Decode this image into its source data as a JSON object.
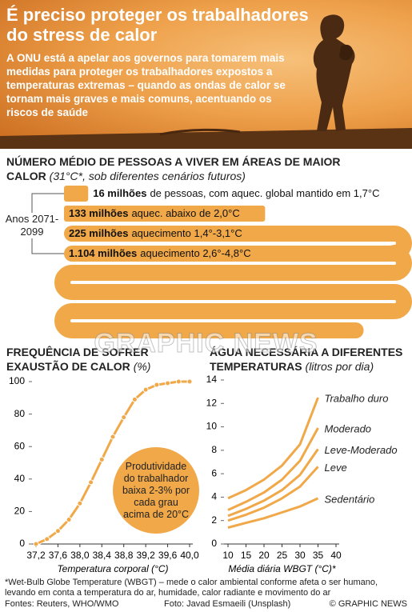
{
  "header": {
    "title": "É preciso proteger os trabalhadores do stress de calor",
    "subtitle": "A ONU está a apelar aos governos para tomarem mais medidas para proteger os trabalhadores expostos a temperaturas extremas – quando as ondas de calor se tornam mais graves e mais comuns, acentuando os riscos de saúde"
  },
  "chart_data": [
    {
      "type": "bar",
      "title": "NÚMERO MÉDIO DE PESSOAS A VIVER EM ÁREAS DE MAIOR CALOR",
      "subtitle": "(31°C*, sob diferentes cenários futuros)",
      "period_label": "Anos 2071-2099",
      "categories": [
        "de pessoas, com aquec. global mantido em 1,7°C",
        "aquec. abaixo de 2,0°C",
        "aquecimento 1,4°-3,1°C",
        "aquecimento 2,6°-4,8°C"
      ],
      "values": [
        16,
        133,
        225,
        1104
      ],
      "value_labels": [
        "16 milhões",
        "133 milhões",
        "225 milhões",
        "1.104 milhões"
      ],
      "color": "#f0a848"
    },
    {
      "type": "line",
      "title": "FREQUÊNCIA DE SOFRER EXAUSTÃO DE CALOR",
      "units": "(%)",
      "x_label": "Temperatura corporal (°C)",
      "x": [
        37.2,
        37.4,
        37.6,
        37.8,
        38.0,
        38.2,
        38.4,
        38.6,
        38.8,
        39.0,
        39.2,
        39.4,
        39.6,
        39.8,
        40.0
      ],
      "values": [
        0,
        3,
        8,
        15,
        25,
        38,
        52,
        66,
        78,
        89,
        95,
        98,
        99,
        100,
        100
      ],
      "color": "#f0a848",
      "markers": true,
      "xlim": [
        37.2,
        40.0
      ],
      "xticks": [
        {
          "value": 37.2,
          "label": "37,2"
        },
        {
          "value": 37.6,
          "label": "37,6"
        },
        {
          "value": 38.0,
          "label": "38,0"
        },
        {
          "value": 38.4,
          "label": "38,4"
        },
        {
          "value": 38.8,
          "label": "38,8"
        },
        {
          "value": 39.2,
          "label": "39,2"
        },
        {
          "value": 39.6,
          "label": "39,6"
        },
        {
          "value": 40.0,
          "label": "40,0"
        }
      ],
      "ylim": [
        0,
        100
      ],
      "yticks": [
        0,
        20,
        40,
        60,
        80,
        100
      ],
      "annotation": "Produtividade do trabalhador baixa 2-3% por cada grau acima de 20°C"
    },
    {
      "type": "line",
      "title": "ÁGUA NECESSÁRIA A DIFERENTES TEMPERATURAS",
      "units": "(litros por dia)",
      "x_label": "Média diária WBGT (°C)*",
      "x": [
        10,
        15,
        20,
        25,
        30,
        35
      ],
      "series": [
        {
          "name": "Trabalho duro",
          "color": "#f0a848",
          "values": [
            3.9,
            4.6,
            5.5,
            6.7,
            8.5,
            12.5
          ]
        },
        {
          "name": "Moderado",
          "color": "#f0a848",
          "values": [
            2.9,
            3.6,
            4.4,
            5.5,
            7.1,
            9.9
          ]
        },
        {
          "name": "Leve-Moderado",
          "color": "#f0a848",
          "values": [
            2.4,
            3.0,
            3.7,
            4.6,
            5.9,
            8.1
          ]
        },
        {
          "name": "Leve",
          "color": "#f0a848",
          "values": [
            2.0,
            2.5,
            3.1,
            3.9,
            4.9,
            6.6
          ]
        },
        {
          "name": "Sedentário",
          "color": "#f0a848",
          "values": [
            1.4,
            1.8,
            2.2,
            2.7,
            3.2,
            3.9
          ]
        }
      ],
      "xlim": [
        10,
        40
      ],
      "xticks": [
        10,
        15,
        20,
        25,
        30,
        35,
        40
      ],
      "ylim": [
        0,
        14
      ],
      "yticks": [
        0,
        2,
        4,
        6,
        8,
        10,
        12,
        14
      ]
    }
  ],
  "footer": {
    "note": "*Wet-Bulb Globe Temperature (WBGT) – mede o calor ambiental conforme afeta o ser humano, levando em conta a temperatura do ar, humidade, calor radiante e movimento do ar",
    "sources": "Fontes: Reuters, WHO/WMO",
    "photo": "Foto: Javad Esmaeili (Unsplash)",
    "copyright": "© GRAPHIC NEWS"
  },
  "watermark": "GRAPHIC NEWS"
}
